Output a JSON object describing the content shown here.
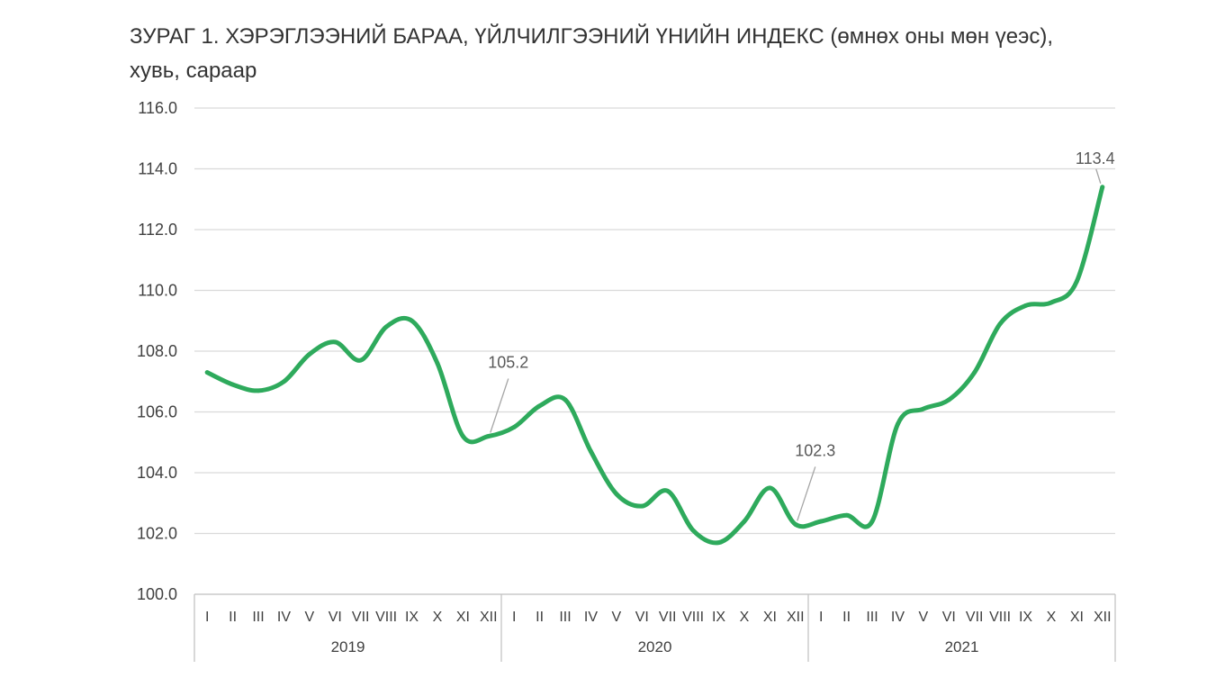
{
  "title": {
    "line1": "ЗУРАГ 1. ХЭРЭГЛЭЭНИЙ БАРАА, ҮЙЛЧИЛГЭЭНИЙ ҮНИЙН ИНДЕКС (өмнөх оны мөн үеэс),",
    "line2": "хувь, сараар"
  },
  "chart_data": {
    "type": "line",
    "title": "ЗУРАГ 1. ХЭРЭГЛЭЭНИЙ БАРАА, ҮЙЛЧИЛГЭЭНИЙ ҮНИЙН ИНДЕКС (өмнөх оны мөн үеэс), хувь, сараар",
    "years": [
      "2019",
      "2020",
      "2021"
    ],
    "months": [
      "I",
      "II",
      "III",
      "IV",
      "V",
      "VI",
      "VII",
      "VIII",
      "IX",
      "X",
      "XI",
      "XII"
    ],
    "ylim": [
      100,
      116
    ],
    "yticks": [
      "100.0",
      "102.0",
      "104.0",
      "106.0",
      "108.0",
      "110.0",
      "112.0",
      "114.0",
      "116.0"
    ],
    "grid": true,
    "color": "#2eaa5c",
    "series": [
      {
        "values": [
          107.3,
          106.9,
          106.7,
          107.0,
          107.9,
          108.3,
          107.7,
          108.8,
          109.0,
          107.6,
          105.2,
          105.2,
          105.5,
          106.2,
          106.4,
          104.7,
          103.3,
          102.9,
          103.4,
          102.1,
          101.7,
          102.4,
          103.5,
          102.3,
          102.4,
          102.6,
          102.4,
          105.6,
          106.1,
          106.4,
          107.3,
          108.9,
          109.5,
          109.6,
          110.3,
          113.4
        ]
      }
    ],
    "data_labels": [
      {
        "index": 11,
        "text": "105.2"
      },
      {
        "index": 23,
        "text": "102.3"
      },
      {
        "index": 35,
        "text": "113.4"
      }
    ]
  }
}
